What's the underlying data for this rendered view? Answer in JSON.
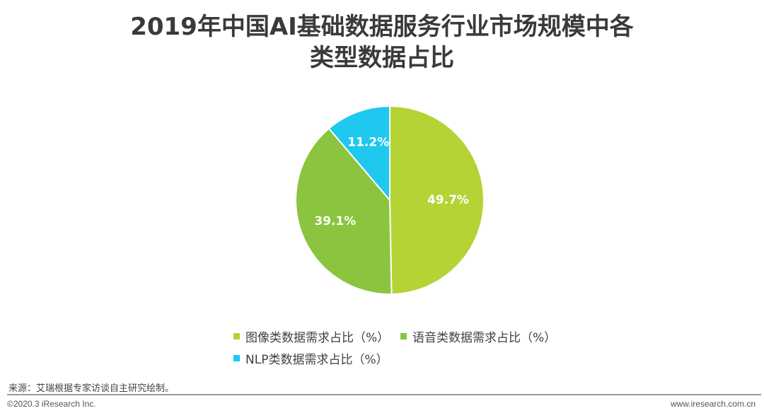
{
  "title": {
    "line1": "2019年中国AI基础数据服务行业市场规模中各",
    "line2": "类型数据占比"
  },
  "chart_data": {
    "type": "pie",
    "title": "2019年中国AI基础数据服务行业市场规模中各类型数据占比",
    "slices": [
      {
        "label": "图像类数据需求占比（%）",
        "value": 49.7,
        "display": "49.7%",
        "color": "#b4d334"
      },
      {
        "label": "语音类数据需求占比（%）",
        "value": 39.1,
        "display": "39.1%",
        "color": "#8bc43f"
      },
      {
        "label": "NLP类数据需求占比（%）",
        "value": 11.2,
        "display": "11.2%",
        "color": "#1ec8ef"
      }
    ],
    "start_angle": "12 o'clock, clockwise",
    "legend_position": "bottom",
    "label_color": "#ffffff"
  },
  "footer": {
    "source": "来源：艾瑞根据专家访谈自主研究绘制。",
    "copyright": "©2020.3 iResearch Inc.",
    "website": "www.iresearch.com.cn"
  }
}
